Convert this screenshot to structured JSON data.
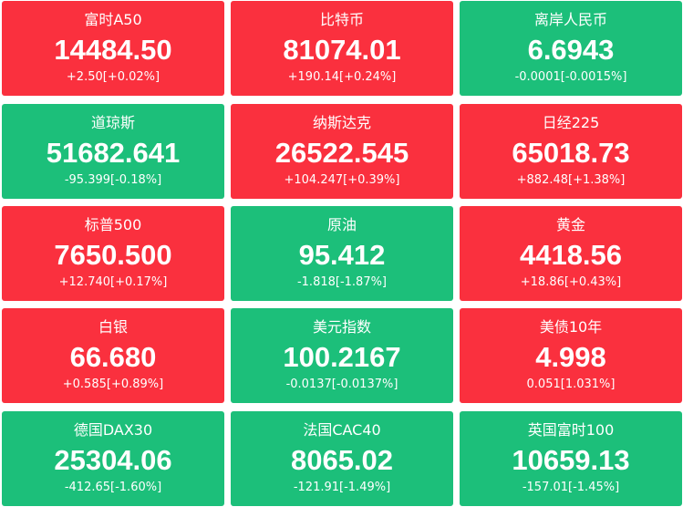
{
  "tiles": [
    {
      "name": "富时A50",
      "price": "14484.50",
      "change": "+2.50[+0.02%]",
      "color": "#fa303e"
    },
    {
      "name": "比特币",
      "price": "81074.01",
      "change": "+190.14[+0.24%]",
      "color": "#fa303e"
    },
    {
      "name": "离岸人民币",
      "price": "6.6943",
      "change": "-0.0001[-0.0015%]",
      "color": "#1cbf7a"
    },
    {
      "name": "道琼斯",
      "price": "51682.641",
      "change": "-95.399[-0.18%]",
      "color": "#1cbf7a"
    },
    {
      "name": "纳斯达克",
      "price": "26522.545",
      "change": "+104.247[+0.39%]",
      "color": "#fa303e"
    },
    {
      "name": "日经225",
      "price": "65018.73",
      "change": "+882.48[+1.38%]",
      "color": "#fa303e"
    },
    {
      "name": "标普500",
      "price": "7650.500",
      "change": "+12.740[+0.17%]",
      "color": "#fa303e"
    },
    {
      "name": "原油",
      "price": "95.412",
      "change": "-1.818[-1.87%]",
      "color": "#1cbf7a"
    },
    {
      "name": "黄金",
      "price": "4418.56",
      "change": "+18.86[+0.43%]",
      "color": "#fa303e"
    },
    {
      "name": "白银",
      "price": "66.680",
      "change": "+0.585[+0.89%]",
      "color": "#fa303e"
    },
    {
      "name": "美元指数",
      "price": "100.2167",
      "change": "-0.0137[-0.0137%]",
      "color": "#1cbf7a"
    },
    {
      "name": "美债10年",
      "price": "4.998",
      "change": "0.051[1.031%]",
      "color": "#fa303e"
    },
    {
      "name": "德国DAX30",
      "price": "25304.06",
      "change": "-412.65[-1.60%]",
      "color": "#1cbf7a"
    },
    {
      "name": "法国CAC40",
      "price": "8065.02",
      "change": "-121.91[-1.49%]",
      "color": "#1cbf7a"
    },
    {
      "name": "英国富时100",
      "price": "10659.13",
      "change": "-157.01[-1.45%]",
      "color": "#1cbf7a"
    }
  ]
}
